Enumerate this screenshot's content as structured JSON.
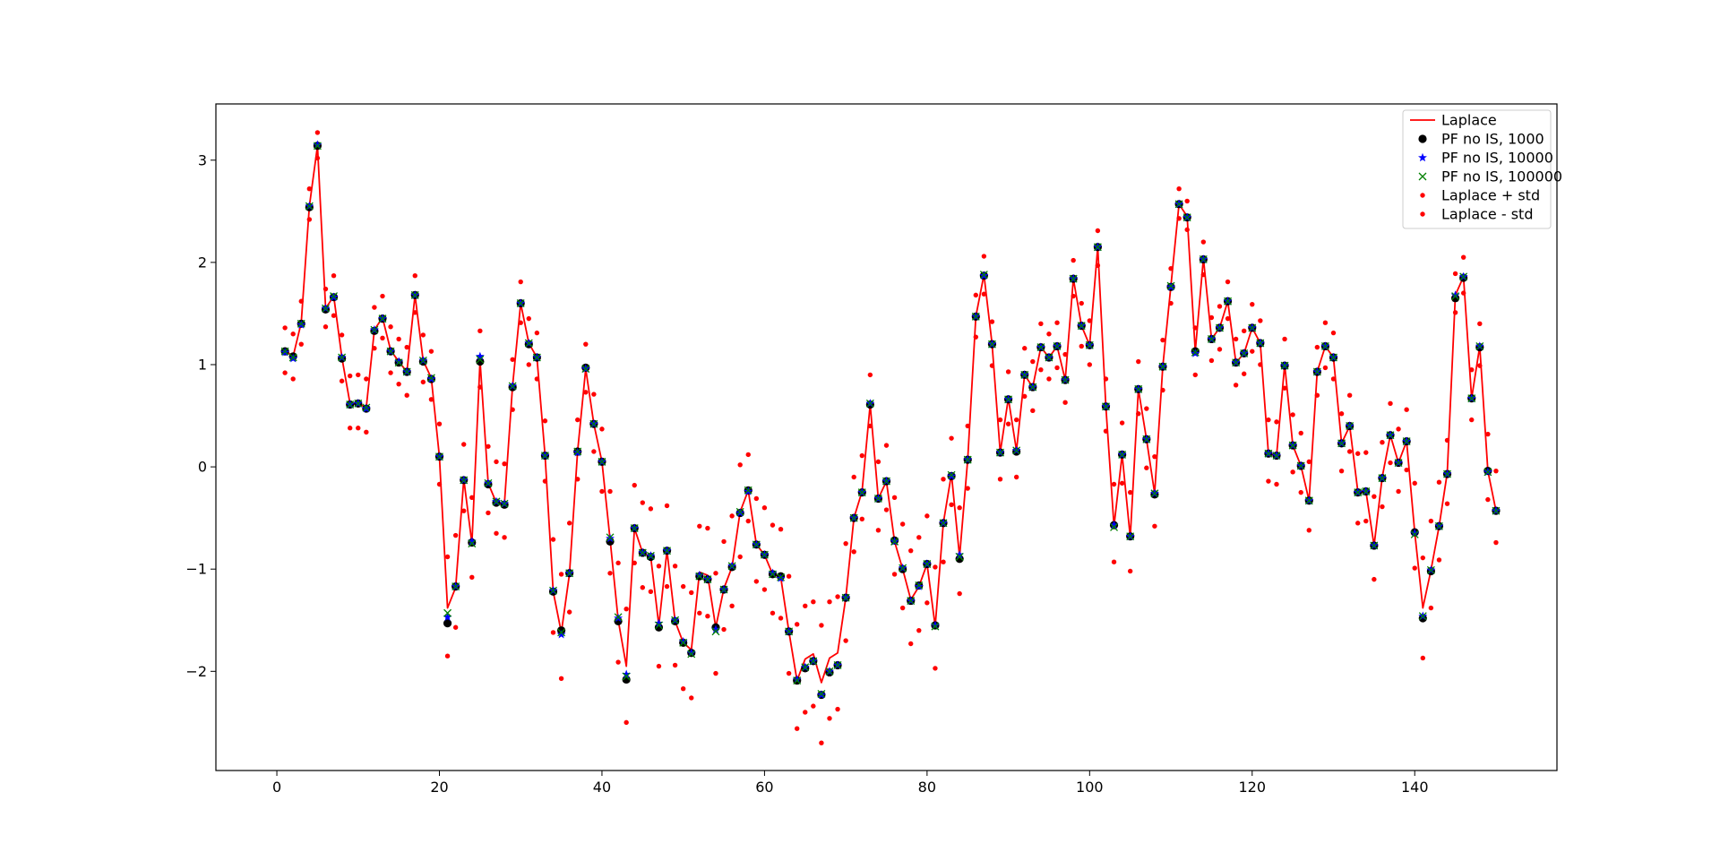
{
  "chart_data": {
    "type": "line",
    "title": "",
    "xlabel": "",
    "ylabel": "",
    "xlim": [
      -7.5,
      157.5
    ],
    "ylim": [
      -2.97,
      3.55
    ],
    "xticks": [
      0,
      20,
      40,
      60,
      80,
      100,
      120,
      140
    ],
    "yticks": [
      -2,
      -1,
      0,
      1,
      2,
      3
    ],
    "xtick_labels": [
      "0",
      "20",
      "40",
      "60",
      "80",
      "100",
      "120",
      "140"
    ],
    "ytick_labels": [
      "−2",
      "−1",
      "0",
      "1",
      "2",
      "3"
    ],
    "grid": false,
    "legend_position": "top-right",
    "legend": [
      {
        "label": "Laplace",
        "marker": "line",
        "color": "#ff0000"
      },
      {
        "label": "PF no IS, 1000",
        "marker": "circle",
        "color": "#000000"
      },
      {
        "label": "PF no IS, 10000",
        "marker": "star",
        "color": "#0000ff"
      },
      {
        "label": "PF no IS, 100000",
        "marker": "x",
        "color": "#008000"
      },
      {
        "label": "Laplace + std",
        "marker": "dot",
        "color": "#ff0000"
      },
      {
        "label": "Laplace - std",
        "marker": "dot",
        "color": "#ff0000"
      }
    ],
    "x": [
      1,
      2,
      3,
      4,
      5,
      6,
      7,
      8,
      9,
      10,
      11,
      12,
      13,
      14,
      15,
      16,
      17,
      18,
      19,
      20,
      21,
      22,
      23,
      24,
      25,
      26,
      27,
      28,
      29,
      30,
      31,
      32,
      33,
      34,
      35,
      36,
      37,
      38,
      39,
      40,
      41,
      42,
      43,
      44,
      45,
      46,
      47,
      48,
      49,
      50,
      51,
      52,
      53,
      54,
      55,
      56,
      57,
      58,
      59,
      60,
      61,
      62,
      63,
      64,
      65,
      66,
      67,
      68,
      69,
      70,
      71,
      72,
      73,
      74,
      75,
      76,
      77,
      78,
      79,
      80,
      81,
      82,
      83,
      84,
      85,
      86,
      87,
      88,
      89,
      90,
      91,
      92,
      93,
      94,
      95,
      96,
      97,
      98,
      99,
      100,
      101,
      102,
      103,
      104,
      105,
      106,
      107,
      108,
      109,
      110,
      111,
      112,
      113,
      114,
      115,
      116,
      117,
      118,
      119,
      120,
      121,
      122,
      123,
      124,
      125,
      126,
      127,
      128,
      129,
      130,
      131,
      132,
      133,
      134,
      135,
      136,
      137,
      138,
      139,
      140,
      141,
      142,
      143,
      144,
      145,
      146,
      147,
      148,
      149,
      150
    ],
    "series": [
      {
        "name": "Laplace",
        "style": "line",
        "color": "#ff0000",
        "values": [
          1.14,
          1.08,
          1.41,
          2.55,
          3.14,
          1.55,
          1.67,
          1.07,
          0.62,
          0.62,
          0.58,
          1.34,
          1.46,
          1.14,
          1.03,
          0.93,
          1.68,
          1.04,
          0.87,
          0.1,
          -1.38,
          -1.18,
          -0.12,
          -0.75,
          1.04,
          -0.16,
          -0.35,
          -0.36,
          0.79,
          1.6,
          1.21,
          1.07,
          0.11,
          -1.22,
          -1.62,
          -1.05,
          0.15,
          0.96,
          0.42,
          0.05,
          -0.71,
          -1.5,
          -1.95,
          -0.6,
          -0.84,
          -0.88,
          -1.55,
          -0.82,
          -1.51,
          -1.72,
          -1.79,
          -1.03,
          -1.06,
          -1.57,
          -1.19,
          -0.98,
          -0.44,
          -0.23,
          -0.76,
          -0.86,
          -1.05,
          -1.08,
          -1.61,
          -2.09,
          -1.88,
          -1.83,
          -2.11,
          -1.87,
          -1.82,
          -1.28,
          -0.5,
          -0.24,
          0.61,
          -0.31,
          -0.14,
          -0.73,
          -1.0,
          -1.3,
          -1.17,
          -0.95,
          -1.56,
          -0.55,
          -0.07,
          -0.88,
          0.07,
          1.47,
          1.88,
          1.2,
          0.14,
          0.67,
          0.16,
          0.9,
          0.78,
          1.17,
          1.07,
          1.18,
          0.85,
          1.84,
          1.38,
          1.19,
          2.15,
          0.59,
          -0.58,
          0.12,
          -0.69,
          0.76,
          0.27,
          -0.26,
          0.98,
          1.77,
          2.57,
          2.45,
          1.13,
          2.04,
          1.25,
          1.36,
          1.62,
          1.02,
          1.11,
          1.36,
          1.21,
          0.13,
          0.11,
          1.0,
          0.21,
          0.01,
          -0.33,
          0.93,
          1.18,
          1.07,
          0.23,
          0.4,
          -0.24,
          -0.24,
          -0.77,
          -0.1,
          0.31,
          0.04,
          0.25,
          -0.64,
          -1.38,
          -1.01,
          -0.58,
          -0.06,
          1.68,
          1.86,
          0.67,
          1.18,
          -0.04,
          -0.43
        ]
      },
      {
        "name": "PF no IS, 1000",
        "style": "circle",
        "color": "#000000",
        "values": [
          1.13,
          1.08,
          1.4,
          2.54,
          3.14,
          1.54,
          1.66,
          1.06,
          0.61,
          0.62,
          0.57,
          1.33,
          1.45,
          1.13,
          1.02,
          0.93,
          1.68,
          1.03,
          0.86,
          0.1,
          -1.53,
          -1.17,
          -0.13,
          -0.74,
          1.03,
          -0.17,
          -0.35,
          -0.37,
          0.78,
          1.6,
          1.2,
          1.07,
          0.11,
          -1.22,
          -1.6,
          -1.04,
          0.15,
          0.97,
          0.42,
          0.05,
          -0.73,
          -1.51,
          -2.08,
          -0.6,
          -0.84,
          -0.88,
          -1.57,
          -0.82,
          -1.51,
          -1.72,
          -1.82,
          -1.07,
          -1.1,
          -1.57,
          -1.2,
          -0.98,
          -0.45,
          -0.23,
          -0.76,
          -0.86,
          -1.05,
          -1.07,
          -1.61,
          -2.09,
          -1.97,
          -1.9,
          -2.23,
          -2.01,
          -1.94,
          -1.28,
          -0.5,
          -0.25,
          0.61,
          -0.31,
          -0.14,
          -0.72,
          -1.0,
          -1.31,
          -1.16,
          -0.95,
          -1.55,
          -0.55,
          -0.09,
          -0.9,
          0.07,
          1.47,
          1.87,
          1.2,
          0.14,
          0.66,
          0.15,
          0.9,
          0.78,
          1.17,
          1.07,
          1.18,
          0.85,
          1.84,
          1.38,
          1.19,
          2.15,
          0.59,
          -0.57,
          0.12,
          -0.68,
          0.76,
          0.27,
          -0.27,
          0.98,
          1.76,
          2.57,
          2.44,
          1.13,
          2.03,
          1.25,
          1.36,
          1.62,
          1.02,
          1.11,
          1.36,
          1.21,
          0.13,
          0.11,
          0.99,
          0.21,
          0.01,
          -0.33,
          0.93,
          1.18,
          1.07,
          0.23,
          0.4,
          -0.25,
          -0.24,
          -0.77,
          -0.11,
          0.31,
          0.04,
          0.25,
          -0.64,
          -1.48,
          -1.02,
          -0.58,
          -0.07,
          1.65,
          1.85,
          0.67,
          1.17,
          -0.04,
          -0.43
        ]
      },
      {
        "name": "PF no IS, 10000",
        "style": "star",
        "color": "#0000ff",
        "values": [
          1.12,
          1.06,
          1.39,
          2.55,
          3.15,
          1.55,
          1.66,
          1.07,
          0.61,
          0.62,
          0.57,
          1.34,
          1.45,
          1.13,
          1.03,
          0.93,
          1.68,
          1.04,
          0.86,
          0.1,
          -1.47,
          -1.17,
          -0.13,
          -0.73,
          1.08,
          -0.16,
          -0.34,
          -0.36,
          0.79,
          1.6,
          1.21,
          1.07,
          0.11,
          -1.21,
          -1.64,
          -1.04,
          0.14,
          0.96,
          0.42,
          0.05,
          -0.7,
          -1.48,
          -2.03,
          -0.6,
          -0.84,
          -0.87,
          -1.53,
          -0.82,
          -1.5,
          -1.71,
          -1.82,
          -1.06,
          -1.1,
          -1.59,
          -1.2,
          -0.97,
          -0.45,
          -0.24,
          -0.76,
          -0.86,
          -1.04,
          -1.09,
          -1.61,
          -2.08,
          -1.96,
          -1.9,
          -2.23,
          -2.0,
          -1.94,
          -1.28,
          -0.5,
          -0.25,
          0.62,
          -0.31,
          -0.14,
          -0.73,
          -0.99,
          -1.31,
          -1.17,
          -0.95,
          -1.55,
          -0.55,
          -0.09,
          -0.86,
          0.07,
          1.47,
          1.87,
          1.2,
          0.14,
          0.66,
          0.16,
          0.9,
          0.78,
          1.17,
          1.07,
          1.18,
          0.85,
          1.84,
          1.38,
          1.19,
          2.15,
          0.59,
          -0.57,
          0.12,
          -0.68,
          0.76,
          0.27,
          -0.26,
          0.98,
          1.76,
          2.57,
          2.44,
          1.11,
          2.03,
          1.25,
          1.36,
          1.62,
          1.02,
          1.11,
          1.36,
          1.21,
          0.13,
          0.11,
          0.99,
          0.21,
          0.01,
          -0.33,
          0.93,
          1.18,
          1.07,
          0.23,
          0.4,
          -0.25,
          -0.24,
          -0.77,
          -0.11,
          0.31,
          0.04,
          0.25,
          -0.65,
          -1.46,
          -1.01,
          -0.58,
          -0.07,
          1.68,
          1.86,
          0.67,
          1.18,
          -0.05,
          -0.43
        ]
      },
      {
        "name": "PF no IS, 100000",
        "style": "x",
        "color": "#008000",
        "values": [
          1.13,
          1.07,
          1.4,
          2.55,
          3.14,
          1.55,
          1.67,
          1.07,
          0.61,
          0.62,
          0.58,
          1.34,
          1.45,
          1.13,
          1.02,
          0.93,
          1.68,
          1.04,
          0.87,
          0.1,
          -1.43,
          -1.17,
          -0.13,
          -0.75,
          1.05,
          -0.16,
          -0.34,
          -0.36,
          0.79,
          1.6,
          1.21,
          1.07,
          0.11,
          -1.21,
          -1.62,
          -1.04,
          0.15,
          0.96,
          0.42,
          0.05,
          -0.69,
          -1.47,
          -2.05,
          -0.6,
          -0.84,
          -0.87,
          -1.55,
          -0.82,
          -1.5,
          -1.72,
          -1.83,
          -1.07,
          -1.1,
          -1.61,
          -1.2,
          -0.97,
          -0.44,
          -0.23,
          -0.76,
          -0.86,
          -1.05,
          -1.08,
          -1.61,
          -2.09,
          -1.96,
          -1.9,
          -2.22,
          -2.0,
          -1.94,
          -1.28,
          -0.5,
          -0.25,
          0.62,
          -0.31,
          -0.14,
          -0.73,
          -0.99,
          -1.31,
          -1.16,
          -0.95,
          -1.56,
          -0.55,
          -0.08,
          -0.88,
          0.07,
          1.47,
          1.88,
          1.2,
          0.14,
          0.66,
          0.16,
          0.9,
          0.78,
          1.17,
          1.07,
          1.18,
          0.85,
          1.84,
          1.38,
          1.19,
          2.15,
          0.59,
          -0.59,
          0.12,
          -0.68,
          0.76,
          0.27,
          -0.26,
          0.98,
          1.77,
          2.57,
          2.44,
          1.12,
          2.03,
          1.25,
          1.36,
          1.62,
          1.02,
          1.11,
          1.36,
          1.21,
          0.13,
          0.11,
          0.99,
          0.21,
          0.01,
          -0.33,
          0.93,
          1.18,
          1.07,
          0.23,
          0.4,
          -0.25,
          -0.24,
          -0.77,
          -0.11,
          0.31,
          0.04,
          0.25,
          -0.66,
          -1.46,
          -1.01,
          -0.58,
          -0.07,
          1.67,
          1.86,
          0.67,
          1.18,
          -0.05,
          -0.43
        ]
      },
      {
        "name": "Laplace + std",
        "style": "dot",
        "color": "#ff0000",
        "values": [
          1.36,
          1.3,
          1.62,
          2.72,
          3.27,
          1.74,
          1.87,
          1.29,
          0.89,
          0.9,
          0.86,
          1.56,
          1.67,
          1.37,
          1.25,
          1.17,
          1.87,
          1.29,
          1.13,
          0.42,
          -0.88,
          -0.67,
          0.22,
          -0.3,
          1.33,
          0.2,
          0.05,
          0.03,
          1.05,
          1.81,
          1.45,
          1.31,
          0.45,
          -0.71,
          -1.05,
          -0.55,
          0.46,
          1.2,
          0.71,
          0.37,
          -0.24,
          -0.94,
          -1.39,
          -0.18,
          -0.35,
          -0.41,
          -0.97,
          -0.38,
          -0.97,
          -1.17,
          -1.23,
          -0.58,
          -0.6,
          -1.04,
          -0.73,
          -0.48,
          0.02,
          0.12,
          -0.31,
          -0.4,
          -0.57,
          -0.61,
          -1.07,
          -1.54,
          -1.36,
          -1.32,
          -1.55,
          -1.32,
          -1.27,
          -0.75,
          -0.1,
          0.11,
          0.9,
          0.05,
          0.21,
          -0.3,
          -0.56,
          -0.82,
          -0.69,
          -0.48,
          -0.98,
          -0.12,
          0.28,
          -0.4,
          0.4,
          1.68,
          2.06,
          1.42,
          0.46,
          0.93,
          0.46,
          1.16,
          1.03,
          1.4,
          1.3,
          1.41,
          1.1,
          2.02,
          1.6,
          1.43,
          2.31,
          0.86,
          -0.17,
          0.43,
          -0.25,
          1.03,
          0.57,
          0.1,
          1.24,
          1.94,
          2.72,
          2.6,
          1.36,
          2.2,
          1.46,
          1.57,
          1.81,
          1.25,
          1.33,
          1.59,
          1.43,
          0.46,
          0.44,
          1.25,
          0.51,
          0.33,
          0.05,
          1.17,
          1.41,
          1.31,
          0.52,
          0.7,
          0.13,
          0.14,
          -0.29,
          0.24,
          0.62,
          0.37,
          0.56,
          -0.16,
          -0.89,
          -0.53,
          -0.15,
          0.26,
          1.89,
          2.05,
          0.95,
          1.4,
          0.32,
          -0.04
        ]
      },
      {
        "name": "Laplace - std",
        "style": "dot",
        "color": "#ff0000",
        "values": [
          0.92,
          0.86,
          1.2,
          2.42,
          3.02,
          1.37,
          1.48,
          0.84,
          0.38,
          0.38,
          0.34,
          1.16,
          1.26,
          0.92,
          0.81,
          0.7,
          1.51,
          0.83,
          0.66,
          -0.17,
          -1.85,
          -1.57,
          -0.43,
          -1.08,
          0.78,
          -0.45,
          -0.65,
          -0.69,
          0.56,
          1.41,
          1.0,
          0.86,
          -0.14,
          -1.62,
          -2.07,
          -1.42,
          -0.12,
          0.73,
          0.15,
          -0.24,
          -1.04,
          -1.91,
          -2.5,
          -0.94,
          -1.18,
          -1.22,
          -1.95,
          -1.17,
          -1.94,
          -2.17,
          -2.26,
          -1.43,
          -1.46,
          -2.02,
          -1.59,
          -1.36,
          -0.88,
          -0.53,
          -1.12,
          -1.2,
          -1.43,
          -1.48,
          -2.02,
          -2.56,
          -2.4,
          -2.34,
          -2.7,
          -2.46,
          -2.37,
          -1.7,
          -0.83,
          -0.51,
          0.4,
          -0.62,
          -0.42,
          -1.05,
          -1.38,
          -1.73,
          -1.6,
          -1.33,
          -1.97,
          -0.93,
          -0.37,
          -1.24,
          -0.21,
          1.27,
          1.69,
          0.99,
          -0.12,
          0.42,
          -0.1,
          0.69,
          0.55,
          0.95,
          0.86,
          0.97,
          0.63,
          1.67,
          1.18,
          1.0,
          1.97,
          0.35,
          -0.93,
          -0.16,
          -1.02,
          0.52,
          -0.01,
          -0.58,
          0.75,
          1.6,
          2.43,
          2.32,
          0.9,
          1.88,
          1.04,
          1.15,
          1.45,
          0.8,
          0.91,
          1.13,
          1.0,
          -0.14,
          -0.17,
          0.77,
          -0.05,
          -0.25,
          -0.62,
          0.7,
          0.97,
          0.86,
          -0.04,
          0.15,
          -0.55,
          -0.53,
          -1.1,
          -0.39,
          0.04,
          -0.24,
          -0.03,
          -0.99,
          -1.87,
          -1.38,
          -0.91,
          -0.36,
          1.51,
          1.7,
          0.46,
          0.99,
          -0.32,
          -0.74
        ]
      }
    ]
  }
}
